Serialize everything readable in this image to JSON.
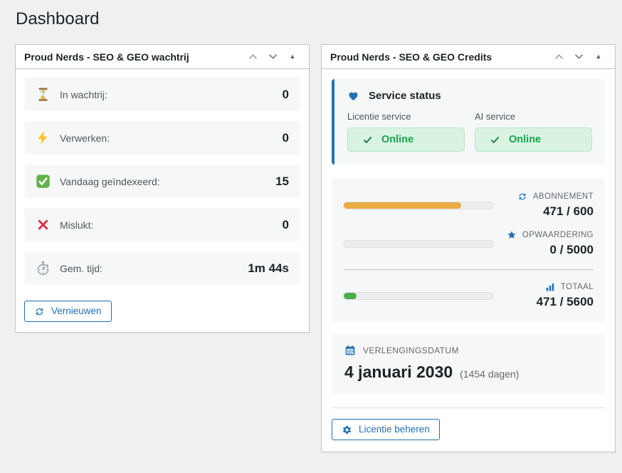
{
  "page": {
    "title": "Dashboard"
  },
  "queue_widget": {
    "title": "Proud Nerds - SEO & GEO wachtrij",
    "rows": [
      {
        "icon": "hourglass-icon",
        "label": "In wachtrij:",
        "value": "0"
      },
      {
        "icon": "lightning-icon",
        "label": "Verwerken:",
        "value": "0"
      },
      {
        "icon": "check-icon",
        "label": "Vandaag geïndexeerd:",
        "value": "15"
      },
      {
        "icon": "cross-icon",
        "label": "Mislukt:",
        "value": "0"
      },
      {
        "icon": "stopwatch-icon",
        "label": "Gem. tijd:",
        "value": "1m 44s"
      }
    ],
    "refresh_label": "Vernieuwen"
  },
  "credits_widget": {
    "title": "Proud Nerds - SEO & GEO Credits",
    "service_status": {
      "title": "Service status",
      "services": [
        {
          "label": "Licentie service",
          "status": "Online"
        },
        {
          "label": "AI service",
          "status": "Online"
        }
      ]
    },
    "credits": [
      {
        "icon": "refresh-icon",
        "label": "ABONNEMENT",
        "value": "471 / 600",
        "percent": 78.5
      },
      {
        "icon": "star-icon",
        "label": "OPWAARDERING",
        "value": "0 / 5000",
        "percent": 0
      },
      {
        "icon": "chart-icon",
        "label": "TOTAAL",
        "value": "471 / 5600",
        "percent": 8.4
      }
    ],
    "renewal": {
      "label": "VERLENGINGSDATUM",
      "date": "4 januari 2030",
      "days": "(1454 dagen)"
    },
    "manage_label": "Licentie beheren"
  },
  "colors": {
    "accent_blue": "#2271b1",
    "bar_amber": "#e9ab42",
    "bar_green": "#4cae4f",
    "online_text": "#18a34b",
    "online_bg": "#d9f3e2",
    "page_bg": "#f0f0f1",
    "panel_border": "#c3c4c7",
    "card_bg": "#f6f7f7"
  }
}
